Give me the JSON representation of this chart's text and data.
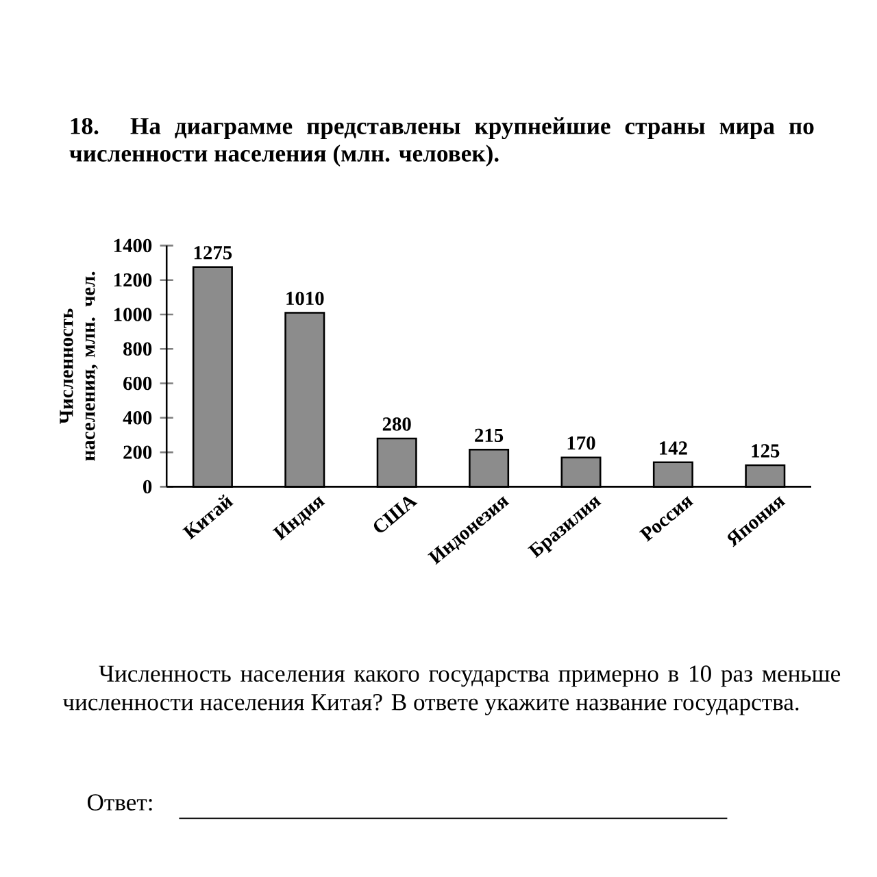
{
  "chart_data": {
    "type": "bar",
    "title": "18. На диаграмме представлены крупнейшие страны мира по численности населения (млн. человек).",
    "ylabel": "Численность населения, млн. чел.",
    "categories": [
      "Китай",
      "Индия",
      "США",
      "Индонезия",
      "Бразилия",
      "Россия",
      "Япония"
    ],
    "values": [
      1275,
      1010,
      280,
      215,
      170,
      142,
      125
    ],
    "color": "#8c8c8c",
    "ylim": [
      0,
      1400
    ],
    "yticks": [
      0,
      200,
      400,
      600,
      800,
      1000,
      1200,
      1400
    ],
    "data_labels": true,
    "grid": false,
    "annotations": [
      "Численность населения какого государства примерно в 10 раз меньше численности населения Китая? В ответе укажите название государства.",
      "Ответ:"
    ]
  }
}
